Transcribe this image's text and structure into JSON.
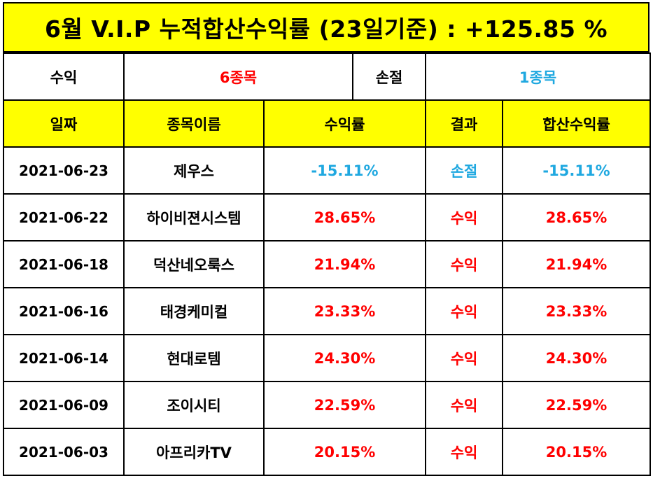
{
  "title": "6월 V.I.P 누적합산수익률 (23일기준) : +125.85 %",
  "summary": {
    "profit_label": "수익",
    "profit_count": "6종목",
    "loss_label": "손절",
    "loss_count": "1종목"
  },
  "headers": [
    "일짜",
    "종목이름",
    "수익률",
    "결과",
    "합산수익률"
  ],
  "rows": [
    {
      "date": "2021-06-23",
      "name": "제우스",
      "rate": "-15.11%",
      "result": "손절",
      "total": "-15.11%",
      "status": "loss"
    },
    {
      "date": "2021-06-22",
      "name": "하이비젼시스템",
      "rate": "28.65%",
      "result": "수익",
      "total": "28.65%",
      "status": "profit"
    },
    {
      "date": "2021-06-18",
      "name": "덕산네오룩스",
      "rate": "21.94%",
      "result": "수익",
      "total": "21.94%",
      "status": "profit"
    },
    {
      "date": "2021-06-16",
      "name": "태경케미컬",
      "rate": "23.33%",
      "result": "수익",
      "total": "23.33%",
      "status": "profit"
    },
    {
      "date": "2021-06-14",
      "name": "현대로템",
      "rate": "24.30%",
      "result": "수익",
      "total": "24.30%",
      "status": "profit"
    },
    {
      "date": "2021-06-09",
      "name": "조이시티",
      "rate": "22.59%",
      "result": "수익",
      "total": "22.59%",
      "status": "profit"
    },
    {
      "date": "2021-06-03",
      "name": "아프리카TV",
      "rate": "20.15%",
      "result": "수익",
      "total": "20.15%",
      "status": "profit"
    }
  ],
  "colors": {
    "header_bg": "#ffff00",
    "profit": "#ff0000",
    "loss": "#1fa8e0"
  }
}
